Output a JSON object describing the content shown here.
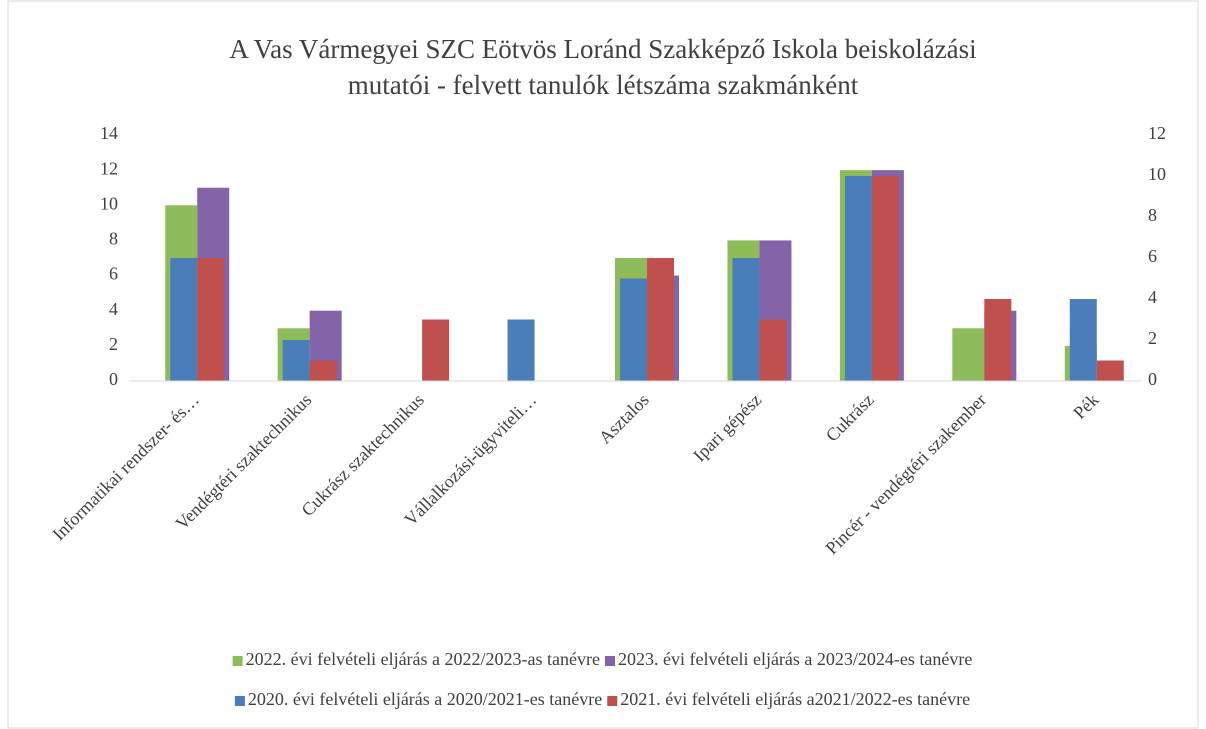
{
  "chart_data": {
    "type": "bar",
    "title": [
      "A Vas Vármegyei SZC Eötvös Loránd Szakképző Iskola beiskolázási",
      "mutatói - felvett tanulók létszáma szakmánként"
    ],
    "categories": [
      "Informatikai rendszer- és…",
      "Vendégtéri szaktechnikus",
      "Cukrász szaktechnikus",
      "Vállalkozási-ügyviteli…",
      "Asztalos",
      "Ipari gépész",
      "Cukrász",
      "Pincér - vendégtéri szakember",
      "Pék"
    ],
    "series": [
      {
        "name": "2022. évi felvételi eljárás a 2022/2023-as tanévre",
        "color": "#8fbc5a",
        "values": [
          10,
          3,
          0,
          0,
          7,
          8,
          12,
          3,
          2
        ]
      },
      {
        "name": "2023. évi felvételi eljárás a 2023/2024-es tanévre",
        "color": "#8464a8",
        "values": [
          11,
          4,
          0,
          0,
          6,
          8,
          12,
          4,
          0
        ]
      },
      {
        "name": "2020. évi felvételi eljárás a 2020/2021-es tanévre",
        "color": "#4a7ebb",
        "axis": "y2",
        "values": [
          6,
          2,
          0,
          3,
          5,
          6,
          10,
          0,
          4
        ]
      },
      {
        "name": "2021. évi felvételi eljárás a2021/2022-es tanévre",
        "color": "#c0504d",
        "axis": "y2",
        "values": [
          6,
          1,
          3,
          0,
          6,
          3,
          10,
          4,
          1
        ]
      }
    ],
    "ylim": [
      0,
      14
    ],
    "yticks": [
      0,
      2,
      4,
      6,
      8,
      10,
      12,
      14
    ],
    "y2lim": [
      0,
      12
    ],
    "y2ticks": [
      0,
      2,
      4,
      6,
      8,
      10,
      12
    ],
    "grid": false
  }
}
